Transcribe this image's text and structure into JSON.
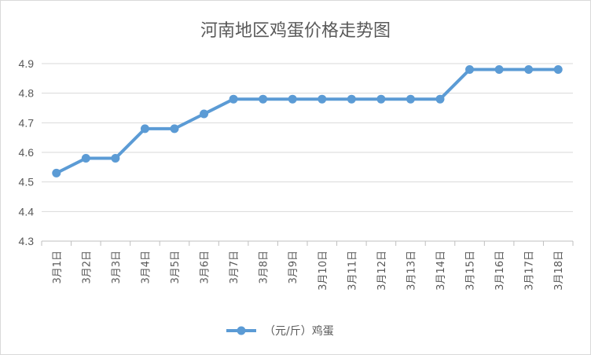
{
  "chart_data": {
    "type": "line",
    "title": "河南地区鸡蛋价格走势图",
    "xlabel": "",
    "ylabel": "",
    "categories": [
      "3月1日",
      "3月2日",
      "3月3日",
      "3月4日",
      "3月5日",
      "3月6日",
      "3月7日",
      "3月8日",
      "3月9日",
      "3月10日",
      "3月11日",
      "3月12日",
      "3月13日",
      "3月14日",
      "3月15日",
      "3月16日",
      "3月17日",
      "3月18日"
    ],
    "series": [
      {
        "name": "（元/斤）鸡蛋",
        "values": [
          4.53,
          4.58,
          4.58,
          4.68,
          4.68,
          4.73,
          4.78,
          4.78,
          4.78,
          4.78,
          4.78,
          4.78,
          4.78,
          4.78,
          4.88,
          4.88,
          4.88,
          4.88
        ],
        "color": "#5B9BD5"
      }
    ],
    "ylim": [
      4.3,
      4.9
    ],
    "yticks": [
      "4.3",
      "4.4",
      "4.5",
      "4.6",
      "4.7",
      "4.8",
      "4.9"
    ],
    "grid": true,
    "legend": "bottom"
  }
}
